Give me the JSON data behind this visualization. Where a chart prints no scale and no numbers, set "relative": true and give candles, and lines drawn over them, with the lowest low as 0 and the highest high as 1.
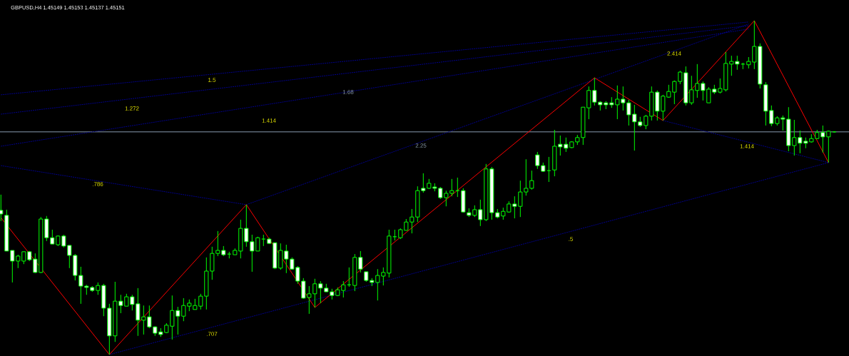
{
  "chart_data": {
    "type": "candlestick",
    "title": "GBPUSD,H4 1.45149 1.45153 1.45137 1.45151",
    "relative": true,
    "color": "#00ff00",
    "categories": [
      null,
      null,
      null,
      null,
      null,
      null,
      null,
      null,
      null,
      null,
      null,
      null,
      null,
      null,
      null,
      null,
      null,
      null,
      null,
      null,
      null,
      null,
      null,
      null,
      null,
      null,
      null,
      null,
      null,
      null,
      null,
      null,
      null,
      null,
      null,
      null,
      null,
      null,
      null,
      null,
      null,
      null,
      null,
      null,
      null,
      null,
      null,
      null,
      null,
      null,
      null,
      null,
      null,
      null,
      null,
      null,
      null,
      null,
      null,
      null,
      null,
      null,
      null,
      null,
      null,
      null,
      null,
      null,
      null,
      null,
      null,
      null,
      null,
      null,
      null,
      null,
      null,
      null,
      null,
      null,
      null,
      null,
      null,
      null,
      null,
      null,
      null,
      null,
      null,
      null,
      null,
      null,
      null,
      null,
      null,
      null,
      null,
      null,
      null,
      null,
      null,
      null,
      null,
      null,
      null,
      null,
      null,
      null,
      null,
      null,
      null,
      null,
      null,
      null,
      null,
      null,
      null,
      null,
      null,
      null,
      null,
      null,
      null,
      null,
      null,
      null,
      null,
      null,
      null,
      null,
      null,
      null,
      null,
      null,
      null,
      null,
      null,
      null,
      null,
      null,
      null,
      null,
      null,
      null,
      null,
      null,
      null
    ],
    "ohlc": [
      [
        0.432,
        0.479,
        0.4,
        0.421
      ],
      [
        0.417,
        0.434,
        0.31,
        0.31
      ],
      [
        0.312,
        0.312,
        0.216,
        0.28
      ],
      [
        0.28,
        0.299,
        0.259,
        0.295
      ],
      [
        0.28,
        0.308,
        0.271,
        0.308
      ],
      [
        0.308,
        0.31,
        0.28,
        0.284
      ],
      [
        0.286,
        0.303,
        0.244,
        0.246
      ],
      [
        0.246,
        0.412,
        0.244,
        0.406
      ],
      [
        0.406,
        0.415,
        0.34,
        0.35
      ],
      [
        0.35,
        0.374,
        0.331,
        0.331
      ],
      [
        0.329,
        0.357,
        0.325,
        0.355
      ],
      [
        0.355,
        0.359,
        0.321,
        0.325
      ],
      [
        0.327,
        0.327,
        0.259,
        0.297
      ],
      [
        0.297,
        0.301,
        0.222,
        0.237
      ],
      [
        0.237,
        0.263,
        0.152,
        0.205
      ],
      [
        0.205,
        0.209,
        0.179,
        0.201
      ],
      [
        0.201,
        0.205,
        0.188,
        0.192
      ],
      [
        0.192,
        0.216,
        0.179,
        0.207
      ],
      [
        0.207,
        0.212,
        0.115,
        0.139
      ],
      [
        0.139,
        0.152,
        0.0,
        0.056
      ],
      [
        0.056,
        0.218,
        0.038,
        0.16
      ],
      [
        0.16,
        0.179,
        0.124,
        0.147
      ],
      [
        0.145,
        0.182,
        0.145,
        0.173
      ],
      [
        0.173,
        0.179,
        0.132,
        0.15
      ],
      [
        0.152,
        0.199,
        0.056,
        0.103
      ],
      [
        0.103,
        0.147,
        0.06,
        0.113
      ],
      [
        0.113,
        0.147,
        0.079,
        0.083
      ],
      [
        0.083,
        0.085,
        0.056,
        0.064
      ],
      [
        0.068,
        0.079,
        0.053,
        0.06
      ],
      [
        0.066,
        0.094,
        0.064,
        0.088
      ],
      [
        0.085,
        0.177,
        0.045,
        0.132
      ],
      [
        0.132,
        0.143,
        0.06,
        0.115
      ],
      [
        0.115,
        0.169,
        0.1,
        0.147
      ],
      [
        0.145,
        0.165,
        0.13,
        0.154
      ],
      [
        0.135,
        0.167,
        0.135,
        0.147
      ],
      [
        0.145,
        0.182,
        0.135,
        0.175
      ],
      [
        0.175,
        0.291,
        0.135,
        0.25
      ],
      [
        0.25,
        0.323,
        0.224,
        0.303
      ],
      [
        0.303,
        0.37,
        0.295,
        0.312
      ],
      [
        0.312,
        0.325,
        0.295,
        0.299
      ],
      [
        0.301,
        0.308,
        0.288,
        0.301
      ],
      [
        0.299,
        0.318,
        0.299,
        0.312
      ],
      [
        0.31,
        0.404,
        0.288,
        0.378
      ],
      [
        0.378,
        0.449,
        0.323,
        0.338
      ],
      [
        0.338,
        0.359,
        0.248,
        0.31
      ],
      [
        0.31,
        0.353,
        0.31,
        0.35
      ],
      [
        0.346,
        0.359,
        0.325,
        0.346
      ],
      [
        0.346,
        0.35,
        0.331,
        0.333
      ],
      [
        0.335,
        0.335,
        0.256,
        0.259
      ],
      [
        0.259,
        0.333,
        0.254,
        0.312
      ],
      [
        0.31,
        0.329,
        0.244,
        0.286
      ],
      [
        0.286,
        0.291,
        0.254,
        0.256
      ],
      [
        0.261,
        0.265,
        0.212,
        0.22
      ],
      [
        0.22,
        0.229,
        0.167,
        0.169
      ],
      [
        0.171,
        0.205,
        0.122,
        0.182
      ],
      [
        0.182,
        0.227,
        0.141,
        0.212
      ],
      [
        0.212,
        0.22,
        0.154,
        0.199
      ],
      [
        0.199,
        0.212,
        0.188,
        0.188
      ],
      [
        0.188,
        0.197,
        0.165,
        0.177
      ],
      [
        0.177,
        0.201,
        0.175,
        0.194
      ],
      [
        0.192,
        0.22,
        0.171,
        0.209
      ],
      [
        0.209,
        0.261,
        0.203,
        0.209
      ],
      [
        0.207,
        0.301,
        0.19,
        0.291
      ],
      [
        0.291,
        0.31,
        0.246,
        0.256
      ],
      [
        0.248,
        0.248,
        0.218,
        0.222
      ],
      [
        0.222,
        0.229,
        0.205,
        0.216
      ],
      [
        0.216,
        0.256,
        0.162,
        0.237
      ],
      [
        0.235,
        0.261,
        0.207,
        0.246
      ],
      [
        0.244,
        0.374,
        0.231,
        0.355
      ],
      [
        0.353,
        0.374,
        0.342,
        0.353
      ],
      [
        0.35,
        0.378,
        0.346,
        0.374
      ],
      [
        0.372,
        0.406,
        0.372,
        0.397
      ],
      [
        0.397,
        0.436,
        0.363,
        0.412
      ],
      [
        0.412,
        0.504,
        0.397,
        0.491
      ],
      [
        0.498,
        0.543,
        0.485,
        0.491
      ],
      [
        0.498,
        0.526,
        0.496,
        0.513
      ],
      [
        0.502,
        0.513,
        0.489,
        0.498
      ],
      [
        0.498,
        0.502,
        0.466,
        0.47
      ],
      [
        0.47,
        0.491,
        0.444,
        0.483
      ],
      [
        0.483,
        0.526,
        0.474,
        0.491
      ],
      [
        0.491,
        0.53,
        0.472,
        0.491
      ],
      [
        0.491,
        0.498,
        0.425,
        0.427
      ],
      [
        0.425,
        0.438,
        0.412,
        0.417
      ],
      [
        0.417,
        0.447,
        0.412,
        0.434
      ],
      [
        0.434,
        0.464,
        0.385,
        0.404
      ],
      [
        0.404,
        0.571,
        0.4,
        0.556
      ],
      [
        0.556,
        0.562,
        0.404,
        0.425
      ],
      [
        0.425,
        0.436,
        0.408,
        0.412
      ],
      [
        0.415,
        0.44,
        0.404,
        0.429
      ],
      [
        0.427,
        0.459,
        0.425,
        0.451
      ],
      [
        0.451,
        0.474,
        0.408,
        0.444
      ],
      [
        0.444,
        0.521,
        0.412,
        0.487
      ],
      [
        0.487,
        0.585,
        0.476,
        0.498
      ],
      [
        0.498,
        0.551,
        0.494,
        0.521
      ],
      [
        0.598,
        0.607,
        0.556,
        0.566
      ],
      [
        0.566,
        0.575,
        0.547,
        0.549
      ],
      [
        0.551,
        0.592,
        0.517,
        0.551
      ],
      [
        0.553,
        0.673,
        0.534,
        0.624
      ],
      [
        0.63,
        0.656,
        0.596,
        0.622
      ],
      [
        0.63,
        0.65,
        0.607,
        0.618
      ],
      [
        0.62,
        0.639,
        0.618,
        0.637
      ],
      [
        0.637,
        0.658,
        0.628,
        0.65
      ],
      [
        0.65,
        0.741,
        0.628,
        0.741
      ],
      [
        0.739,
        0.803,
        0.705,
        0.791
      ],
      [
        0.791,
        0.829,
        0.746,
        0.756
      ],
      [
        0.756,
        0.759,
        0.731,
        0.748
      ],
      [
        0.754,
        0.759,
        0.735,
        0.748
      ],
      [
        0.754,
        0.771,
        0.739,
        0.748
      ],
      [
        0.748,
        0.806,
        0.705,
        0.765
      ],
      [
        0.765,
        0.803,
        0.731,
        0.754
      ],
      [
        0.754,
        0.763,
        0.686,
        0.718
      ],
      [
        0.72,
        0.748,
        0.611,
        0.697
      ],
      [
        0.697,
        0.712,
        0.682,
        0.686
      ],
      [
        0.686,
        0.718,
        0.675,
        0.714
      ],
      [
        0.714,
        0.803,
        0.701,
        0.786
      ],
      [
        0.786,
        0.791,
        0.701,
        0.729
      ],
      [
        0.729,
        0.778,
        0.701,
        0.774
      ],
      [
        0.771,
        0.808,
        0.769,
        0.788
      ],
      [
        0.786,
        0.821,
        0.75,
        0.818
      ],
      [
        0.818,
        0.85,
        0.81,
        0.846
      ],
      [
        0.844,
        0.863,
        0.746,
        0.754
      ],
      [
        0.754,
        0.835,
        0.748,
        0.793
      ],
      [
        0.791,
        0.87,
        0.769,
        0.812
      ],
      [
        0.812,
        0.818,
        0.761,
        0.791
      ],
      [
        0.754,
        0.801,
        0.754,
        0.795
      ],
      [
        0.795,
        0.808,
        0.78,
        0.786
      ],
      [
        0.786,
        0.827,
        0.782,
        0.797
      ],
      [
        0.793,
        0.906,
        0.788,
        0.872
      ],
      [
        0.87,
        0.895,
        0.835,
        0.878
      ],
      [
        0.878,
        0.895,
        0.853,
        0.87
      ],
      [
        0.87,
        0.874,
        0.855,
        0.87
      ],
      [
        0.868,
        0.891,
        0.857,
        0.878
      ],
      [
        0.876,
        1.0,
        0.855,
        0.923
      ],
      [
        0.923,
        0.932,
        0.797,
        0.81
      ],
      [
        0.808,
        0.816,
        0.686,
        0.729
      ],
      [
        0.731,
        0.746,
        0.684,
        0.692
      ],
      [
        0.692,
        0.714,
        0.686,
        0.709
      ],
      [
        0.709,
        0.716,
        0.671,
        0.705
      ],
      [
        0.705,
        0.741,
        0.609,
        0.626
      ],
      [
        0.626,
        0.703,
        0.596,
        0.65
      ],
      [
        0.65,
        0.671,
        0.603,
        0.633
      ],
      [
        0.639,
        0.65,
        0.618,
        0.633
      ],
      [
        0.637,
        0.66,
        0.635,
        0.647
      ],
      [
        0.647,
        0.673,
        0.645,
        0.665
      ],
      [
        0.665,
        0.686,
        0.605,
        0.652
      ],
      [
        0.652,
        0.671,
        0.575,
        0.669
      ],
      [
        0.667,
        0.669,
        0.665,
        0.667
      ]
    ],
    "series": [
      {
        "type": "line",
        "color": "#00008b",
        "line_style": "dashed",
        "values": [
          0.778,
          null,
          null,
          null,
          null,
          null,
          null,
          null,
          null,
          null,
          null,
          null,
          null,
          null,
          null,
          null,
          null,
          null,
          null,
          null,
          null,
          null,
          null,
          null,
          null,
          null,
          null,
          null,
          null,
          null,
          null,
          null,
          null,
          null,
          null,
          null,
          null,
          null,
          null,
          null,
          null,
          null,
          null,
          null,
          null,
          null,
          null,
          null,
          null,
          null,
          null,
          null,
          null,
          null,
          null,
          null,
          null,
          null,
          null,
          null,
          null,
          null,
          null,
          null,
          null,
          null,
          null,
          null,
          null,
          null,
          null,
          null,
          null,
          null,
          null,
          null,
          null,
          null,
          null,
          null,
          null,
          null,
          null,
          null,
          null,
          null,
          null,
          null,
          null,
          null,
          null,
          null,
          null,
          null,
          null,
          null,
          null,
          null,
          null,
          null,
          null,
          null,
          null,
          null,
          null,
          null,
          null,
          null,
          null,
          null,
          null,
          null,
          null,
          null,
          null,
          null,
          null,
          null,
          null,
          null,
          null,
          null,
          null,
          null,
          null,
          null,
          null,
          null,
          null,
          null,
          null,
          0.996,
          null,
          null,
          null,
          null,
          null,
          null,
          null,
          null,
          null,
          null,
          null,
          null,
          null,
          null,
          null
        ]
      },
      {
        "type": "line",
        "color": "#00008b",
        "line_style": "dashed",
        "values": [
          0.72,
          null,
          null,
          null,
          null,
          null,
          null,
          null,
          null,
          null,
          null,
          null,
          null,
          null,
          null,
          null,
          null,
          null,
          null,
          null,
          null,
          null,
          null,
          null,
          null,
          null,
          null,
          null,
          null,
          null,
          null,
          null,
          null,
          null,
          null,
          null,
          null,
          null,
          null,
          null,
          null,
          null,
          null,
          null,
          null,
          null,
          null,
          null,
          null,
          null,
          null,
          null,
          null,
          null,
          null,
          null,
          null,
          null,
          null,
          null,
          null,
          null,
          null,
          null,
          null,
          null,
          null,
          null,
          null,
          null,
          null,
          null,
          null,
          null,
          null,
          null,
          null,
          null,
          null,
          null,
          null,
          null,
          null,
          null,
          null,
          null,
          null,
          null,
          null,
          null,
          null,
          null,
          null,
          null,
          null,
          null,
          null,
          null,
          null,
          null,
          null,
          null,
          null,
          null,
          null,
          null,
          null,
          null,
          null,
          null,
          null,
          null,
          null,
          null,
          null,
          null,
          null,
          null,
          null,
          null,
          null,
          null,
          null,
          null,
          null,
          null,
          null,
          null,
          null,
          null,
          null,
          0.985,
          null,
          null,
          null,
          null,
          null,
          null,
          null,
          null,
          null,
          null,
          null,
          null,
          null,
          null,
          null
        ]
      },
      {
        "type": "line",
        "color": "#00008b",
        "line_style": "dashed",
        "values": [
          0.624,
          null,
          null,
          null,
          null,
          null,
          null,
          null,
          null,
          null,
          null,
          null,
          null,
          null,
          null,
          null,
          null,
          null,
          null,
          null,
          null,
          null,
          null,
          null,
          null,
          null,
          null,
          null,
          null,
          null,
          null,
          null,
          null,
          null,
          null,
          null,
          null,
          null,
          null,
          null,
          null,
          null,
          null,
          null,
          null,
          null,
          null,
          null,
          null,
          null,
          null,
          null,
          null,
          null,
          null,
          null,
          null,
          null,
          null,
          null,
          null,
          null,
          null,
          null,
          null,
          null,
          null,
          null,
          null,
          null,
          null,
          null,
          null,
          null,
          null,
          null,
          null,
          null,
          null,
          null,
          null,
          null,
          null,
          null,
          null,
          null,
          null,
          null,
          null,
          null,
          null,
          null,
          null,
          null,
          null,
          null,
          null,
          null,
          null,
          null,
          null,
          null,
          null,
          null,
          null,
          null,
          null,
          null,
          null,
          null,
          null,
          null,
          null,
          null,
          null,
          null,
          null,
          null,
          null,
          null,
          null,
          null,
          null,
          null,
          null,
          null,
          null,
          null,
          null,
          null,
          null,
          0.975,
          null,
          null,
          null,
          null,
          null,
          null,
          null,
          null,
          null,
          null,
          null,
          null,
          null,
          null,
          null
        ]
      },
      {
        "type": "line",
        "color": "#00008b",
        "line_style": "dashed",
        "values": [
          0.566,
          null,
          null,
          null,
          null,
          null,
          null,
          null,
          null,
          null,
          null,
          null,
          null,
          null,
          null,
          null,
          null,
          null,
          null,
          null,
          null,
          null,
          null,
          null,
          null,
          null,
          null,
          null,
          null,
          null,
          null,
          null,
          null,
          null,
          null,
          null,
          null,
          null,
          null,
          null,
          null,
          null,
          null,
          0.449,
          null,
          null,
          null,
          null,
          null,
          null,
          null,
          null,
          null,
          null,
          null,
          null,
          null,
          null,
          null,
          null,
          null,
          null,
          null,
          null,
          null,
          null,
          null,
          null,
          null,
          null,
          null,
          null,
          null,
          null,
          null,
          null,
          null,
          null,
          null,
          null,
          null,
          null,
          null,
          null,
          null,
          null,
          null,
          null,
          null,
          null,
          null,
          null,
          null,
          null,
          null,
          null,
          null,
          null,
          null,
          null,
          null,
          null,
          null,
          null,
          null,
          null,
          null,
          null,
          null,
          null,
          null,
          null,
          null,
          null,
          null,
          null,
          null,
          null,
          null,
          null,
          null,
          null,
          null,
          null,
          null,
          null,
          null,
          null,
          null,
          null,
          null,
          null,
          null,
          null,
          null,
          null,
          null,
          null,
          null,
          null,
          null,
          null,
          null,
          null,
          null,
          null,
          null
        ]
      },
      {
        "type": "line",
        "color": "#00008b",
        "line_style": "dashed",
        "values": [
          null,
          null,
          null,
          null,
          null,
          null,
          null,
          null,
          null,
          null,
          null,
          null,
          null,
          null,
          null,
          null,
          null,
          null,
          null,
          null,
          null,
          null,
          null,
          null,
          null,
          null,
          null,
          null,
          null,
          null,
          null,
          null,
          null,
          null,
          null,
          null,
          null,
          null,
          null,
          null,
          null,
          null,
          null,
          0.449,
          null,
          null,
          null,
          null,
          null,
          null,
          null,
          null,
          null,
          null,
          null,
          null,
          null,
          null,
          null,
          null,
          null,
          null,
          null,
          null,
          null,
          null,
          null,
          null,
          null,
          null,
          null,
          null,
          null,
          null,
          null,
          null,
          null,
          null,
          null,
          null,
          null,
          null,
          null,
          null,
          null,
          null,
          null,
          null,
          null,
          null,
          null,
          null,
          null,
          null,
          null,
          null,
          null,
          null,
          null,
          null,
          null,
          null,
          null,
          null,
          null,
          null,
          null,
          null,
          null,
          null,
          null,
          null,
          null,
          null,
          null,
          null,
          null,
          null,
          null,
          null,
          null,
          null,
          null,
          null,
          null,
          null,
          null,
          null,
          null,
          null,
          null,
          0.99,
          null,
          null,
          null,
          null,
          null,
          null,
          null,
          null,
          null,
          null,
          null,
          null,
          null,
          null,
          null
        ]
      },
      {
        "type": "line",
        "color": "#00008b",
        "line_style": "dashed",
        "values": [
          null,
          null,
          null,
          null,
          null,
          null,
          null,
          null,
          null,
          null,
          null,
          null,
          null,
          null,
          null,
          null,
          null,
          null,
          null,
          0.0,
          null,
          null,
          null,
          null,
          null,
          null,
          null,
          null,
          null,
          null,
          null,
          null,
          null,
          null,
          null,
          null,
          null,
          null,
          null,
          null,
          null,
          null,
          null,
          null,
          null,
          null,
          null,
          null,
          null,
          null,
          null,
          null,
          null,
          null,
          null,
          null,
          null,
          null,
          null,
          null,
          null,
          null,
          null,
          null,
          null,
          null,
          null,
          null,
          null,
          null,
          null,
          null,
          null,
          null,
          null,
          null,
          null,
          null,
          null,
          null,
          null,
          null,
          null,
          null,
          null,
          null,
          null,
          null,
          null,
          null,
          null,
          null,
          null,
          null,
          null,
          null,
          null,
          null,
          null,
          null,
          null,
          null,
          null,
          null,
          null,
          null,
          null,
          null,
          null,
          null,
          null,
          null,
          null,
          null,
          null,
          null,
          null,
          null,
          null,
          null,
          null,
          null,
          null,
          null,
          null,
          null,
          null,
          null,
          null,
          null,
          null,
          null,
          null,
          null,
          null,
          null,
          null,
          null,
          null,
          null,
          null,
          null,
          null,
          null,
          null,
          0.575,
          null
        ]
      },
      {
        "type": "line",
        "color": "#00008b",
        "line_style": "dashed",
        "values": [
          null,
          null,
          null,
          null,
          null,
          null,
          null,
          null,
          null,
          null,
          null,
          null,
          null,
          null,
          null,
          null,
          null,
          null,
          null,
          null,
          null,
          null,
          null,
          null,
          null,
          null,
          null,
          null,
          null,
          null,
          null,
          null,
          null,
          null,
          null,
          null,
          null,
          null,
          null,
          null,
          null,
          null,
          null,
          null,
          null,
          null,
          null,
          null,
          null,
          null,
          null,
          null,
          null,
          null,
          null,
          null,
          null,
          null,
          null,
          null,
          null,
          null,
          null,
          null,
          null,
          null,
          null,
          null,
          null,
          null,
          null,
          null,
          null,
          null,
          null,
          null,
          null,
          null,
          null,
          null,
          null,
          null,
          null,
          null,
          null,
          null,
          null,
          null,
          null,
          null,
          null,
          null,
          null,
          null,
          null,
          null,
          null,
          null,
          null,
          null,
          null,
          null,
          null,
          null,
          null,
          null,
          null,
          null,
          null,
          null,
          null,
          null,
          null,
          null,
          null,
          null,
          0.701,
          null,
          null,
          null,
          null,
          null,
          null,
          null,
          null,
          null,
          null,
          null,
          null,
          null,
          null,
          null,
          null,
          null,
          null,
          null,
          null,
          null,
          null,
          null,
          null,
          null,
          null,
          null,
          null,
          0.575,
          null
        ]
      },
      {
        "type": "line",
        "color": "#ff0000",
        "line_style": "solid",
        "values": [
          0.41,
          null,
          null,
          null,
          null,
          null,
          null,
          null,
          null,
          null,
          null,
          null,
          null,
          null,
          null,
          null,
          null,
          null,
          null,
          0.0,
          null,
          null,
          null,
          null,
          null,
          null,
          null,
          null,
          null,
          null,
          null,
          null,
          null,
          null,
          null,
          null,
          null,
          null,
          null,
          null,
          null,
          null,
          null,
          0.449,
          null,
          null,
          null,
          null,
          null,
          null,
          null,
          null,
          null,
          null,
          null,
          0.141,
          null,
          null,
          null,
          null,
          null,
          null,
          null,
          null,
          null,
          null,
          null,
          null,
          null,
          null,
          null,
          null,
          null,
          null,
          null,
          null,
          null,
          null,
          null,
          null,
          null,
          null,
          null,
          null,
          null,
          null,
          null,
          null,
          null,
          null,
          null,
          null,
          null,
          null,
          null,
          null,
          null,
          null,
          null,
          null,
          null,
          null,
          null,
          null,
          0.829,
          null,
          null,
          null,
          null,
          null,
          null,
          null,
          null,
          null,
          null,
          null,
          0.701,
          null,
          null,
          null,
          null,
          null,
          null,
          null,
          null,
          null,
          null,
          null,
          null,
          null,
          null,
          null,
          1.0,
          null,
          null,
          null,
          null,
          null,
          null,
          null,
          null,
          null,
          null,
          null,
          null,
          0.575,
          null
        ]
      }
    ],
    "ref_lines": [
      {
        "axis": "y",
        "value": 0.667,
        "color": "#8a9bb0"
      }
    ],
    "annotations": [
      "1.5",
      "1.68",
      "1.272",
      "1.414",
      "2.25",
      ".786",
      ".707",
      ".5",
      "2.414",
      "1.414"
    ]
  }
}
